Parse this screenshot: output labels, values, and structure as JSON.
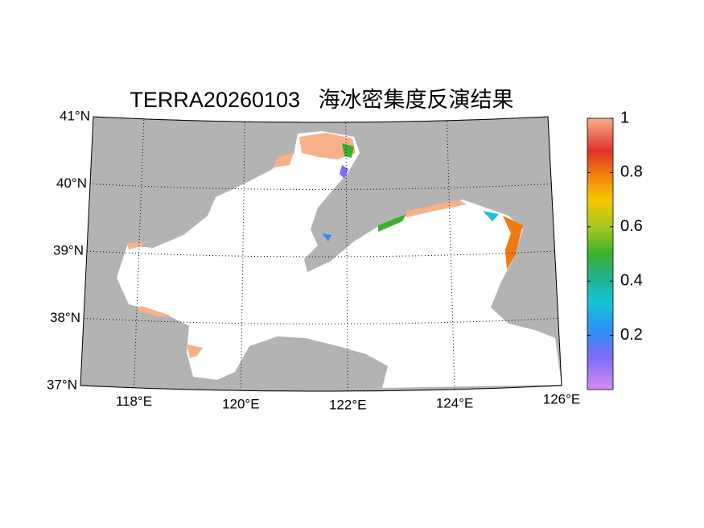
{
  "chart_data": {
    "type": "map",
    "title": "TERRA20260103   海冰密集度反演结果",
    "xlim": [
      117,
      126
    ],
    "ylim": [
      37,
      41
    ],
    "xticks": [
      {
        "value": 118,
        "label": "118°E"
      },
      {
        "value": 120,
        "label": "120°E"
      },
      {
        "value": 122,
        "label": "122°E"
      },
      {
        "value": 124,
        "label": "124°E"
      },
      {
        "value": 126,
        "label": "126°E"
      }
    ],
    "yticks": [
      {
        "value": 37,
        "label": "37°N"
      },
      {
        "value": 38,
        "label": "38°N"
      },
      {
        "value": 39,
        "label": "39°N"
      },
      {
        "value": 40,
        "label": "40°N"
      },
      {
        "value": 41,
        "label": "41°N"
      }
    ],
    "grid": true,
    "colorbar": {
      "clim": [
        0,
        1
      ],
      "ticks": [
        0.2,
        0.4,
        0.6,
        0.8,
        1
      ]
    }
  }
}
